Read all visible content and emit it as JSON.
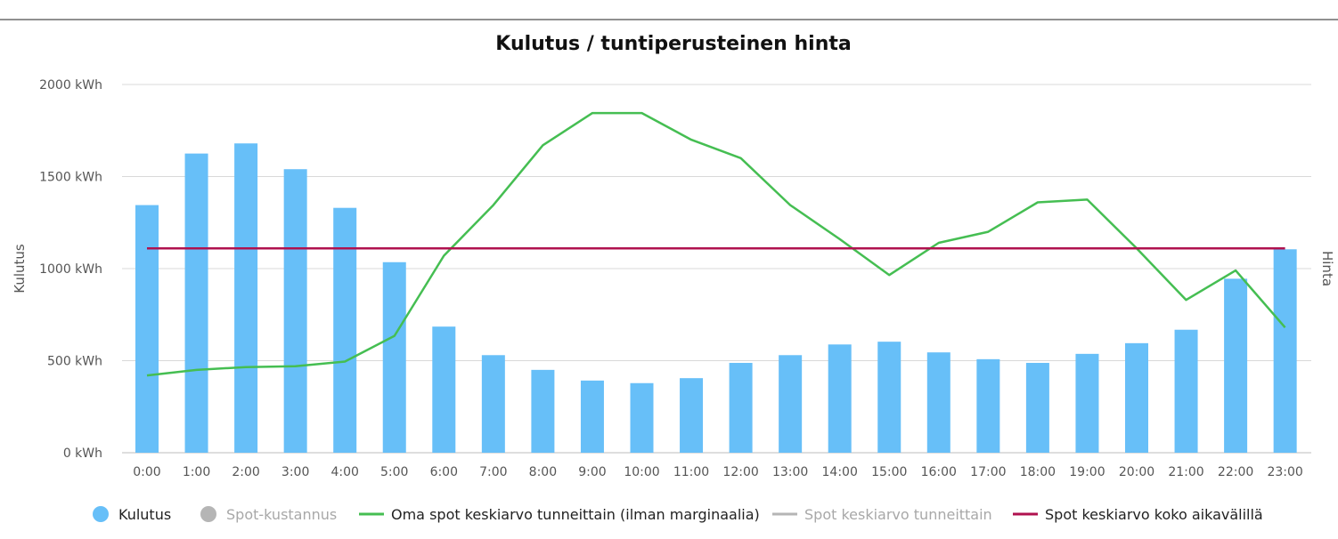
{
  "chart_data": {
    "type": "bar",
    "title": "Kulutus / tuntiperusteinen hinta",
    "ylabel": "Kulutus",
    "y2label": "Hinta",
    "ylim": [
      0,
      2000
    ],
    "y_unit": "kWh",
    "y_ticks": [
      "0 kWh",
      "500 kWh",
      "1000 kWh",
      "1500 kWh",
      "2000 kWh"
    ],
    "grid": true,
    "legend_position": "bottom",
    "categories": [
      "0:00",
      "1:00",
      "2:00",
      "3:00",
      "4:00",
      "5:00",
      "6:00",
      "7:00",
      "8:00",
      "9:00",
      "10:00",
      "11:00",
      "12:00",
      "13:00",
      "14:00",
      "15:00",
      "16:00",
      "17:00",
      "18:00",
      "19:00",
      "20:00",
      "21:00",
      "22:00",
      "23:00"
    ],
    "series": [
      {
        "name": "Kulutus",
        "type": "bar",
        "axis": "left",
        "color": "#67bff8",
        "values": [
          1345,
          1625,
          1680,
          1540,
          1330,
          1035,
          685,
          530,
          450,
          392,
          378,
          405,
          488,
          530,
          588,
          603,
          545,
          508,
          488,
          537,
          595,
          668,
          945,
          1105
        ]
      },
      {
        "name": "Oma spot keskiarvo tunneittain (ilman marginaalia)",
        "type": "line",
        "axis": "right",
        "color": "#45be52",
        "values": [
          420,
          450,
          465,
          470,
          495,
          635,
          1070,
          1345,
          1670,
          1845,
          1845,
          1700,
          1600,
          1345,
          1160,
          965,
          1140,
          1200,
          1360,
          1375,
          1110,
          830,
          990,
          680
        ]
      },
      {
        "name": "Spot keskiarvo koko aikavälillä",
        "type": "line",
        "axis": "right",
        "color": "#b0124f",
        "values": [
          1110,
          1110,
          1110,
          1110,
          1110,
          1110,
          1110,
          1110,
          1110,
          1110,
          1110,
          1110,
          1110,
          1110,
          1110,
          1110,
          1110,
          1110,
          1110,
          1110,
          1110,
          1110,
          1110,
          1110
        ]
      }
    ],
    "legend": [
      {
        "label": "Kulutus",
        "marker": "circle",
        "color": "#67bff8",
        "hidden": false
      },
      {
        "label": "Spot-kustannus",
        "marker": "circle",
        "color": "#b5b5b5",
        "hidden": true
      },
      {
        "label": "Oma spot keskiarvo tunneittain (ilman marginaalia)",
        "marker": "line",
        "color": "#45be52",
        "hidden": false
      },
      {
        "label": "Spot keskiarvo tunneittain",
        "marker": "line",
        "color": "#b5b5b5",
        "hidden": true
      },
      {
        "label": "Spot keskiarvo koko aikavälillä",
        "marker": "line",
        "color": "#b0124f",
        "hidden": false
      }
    ]
  }
}
